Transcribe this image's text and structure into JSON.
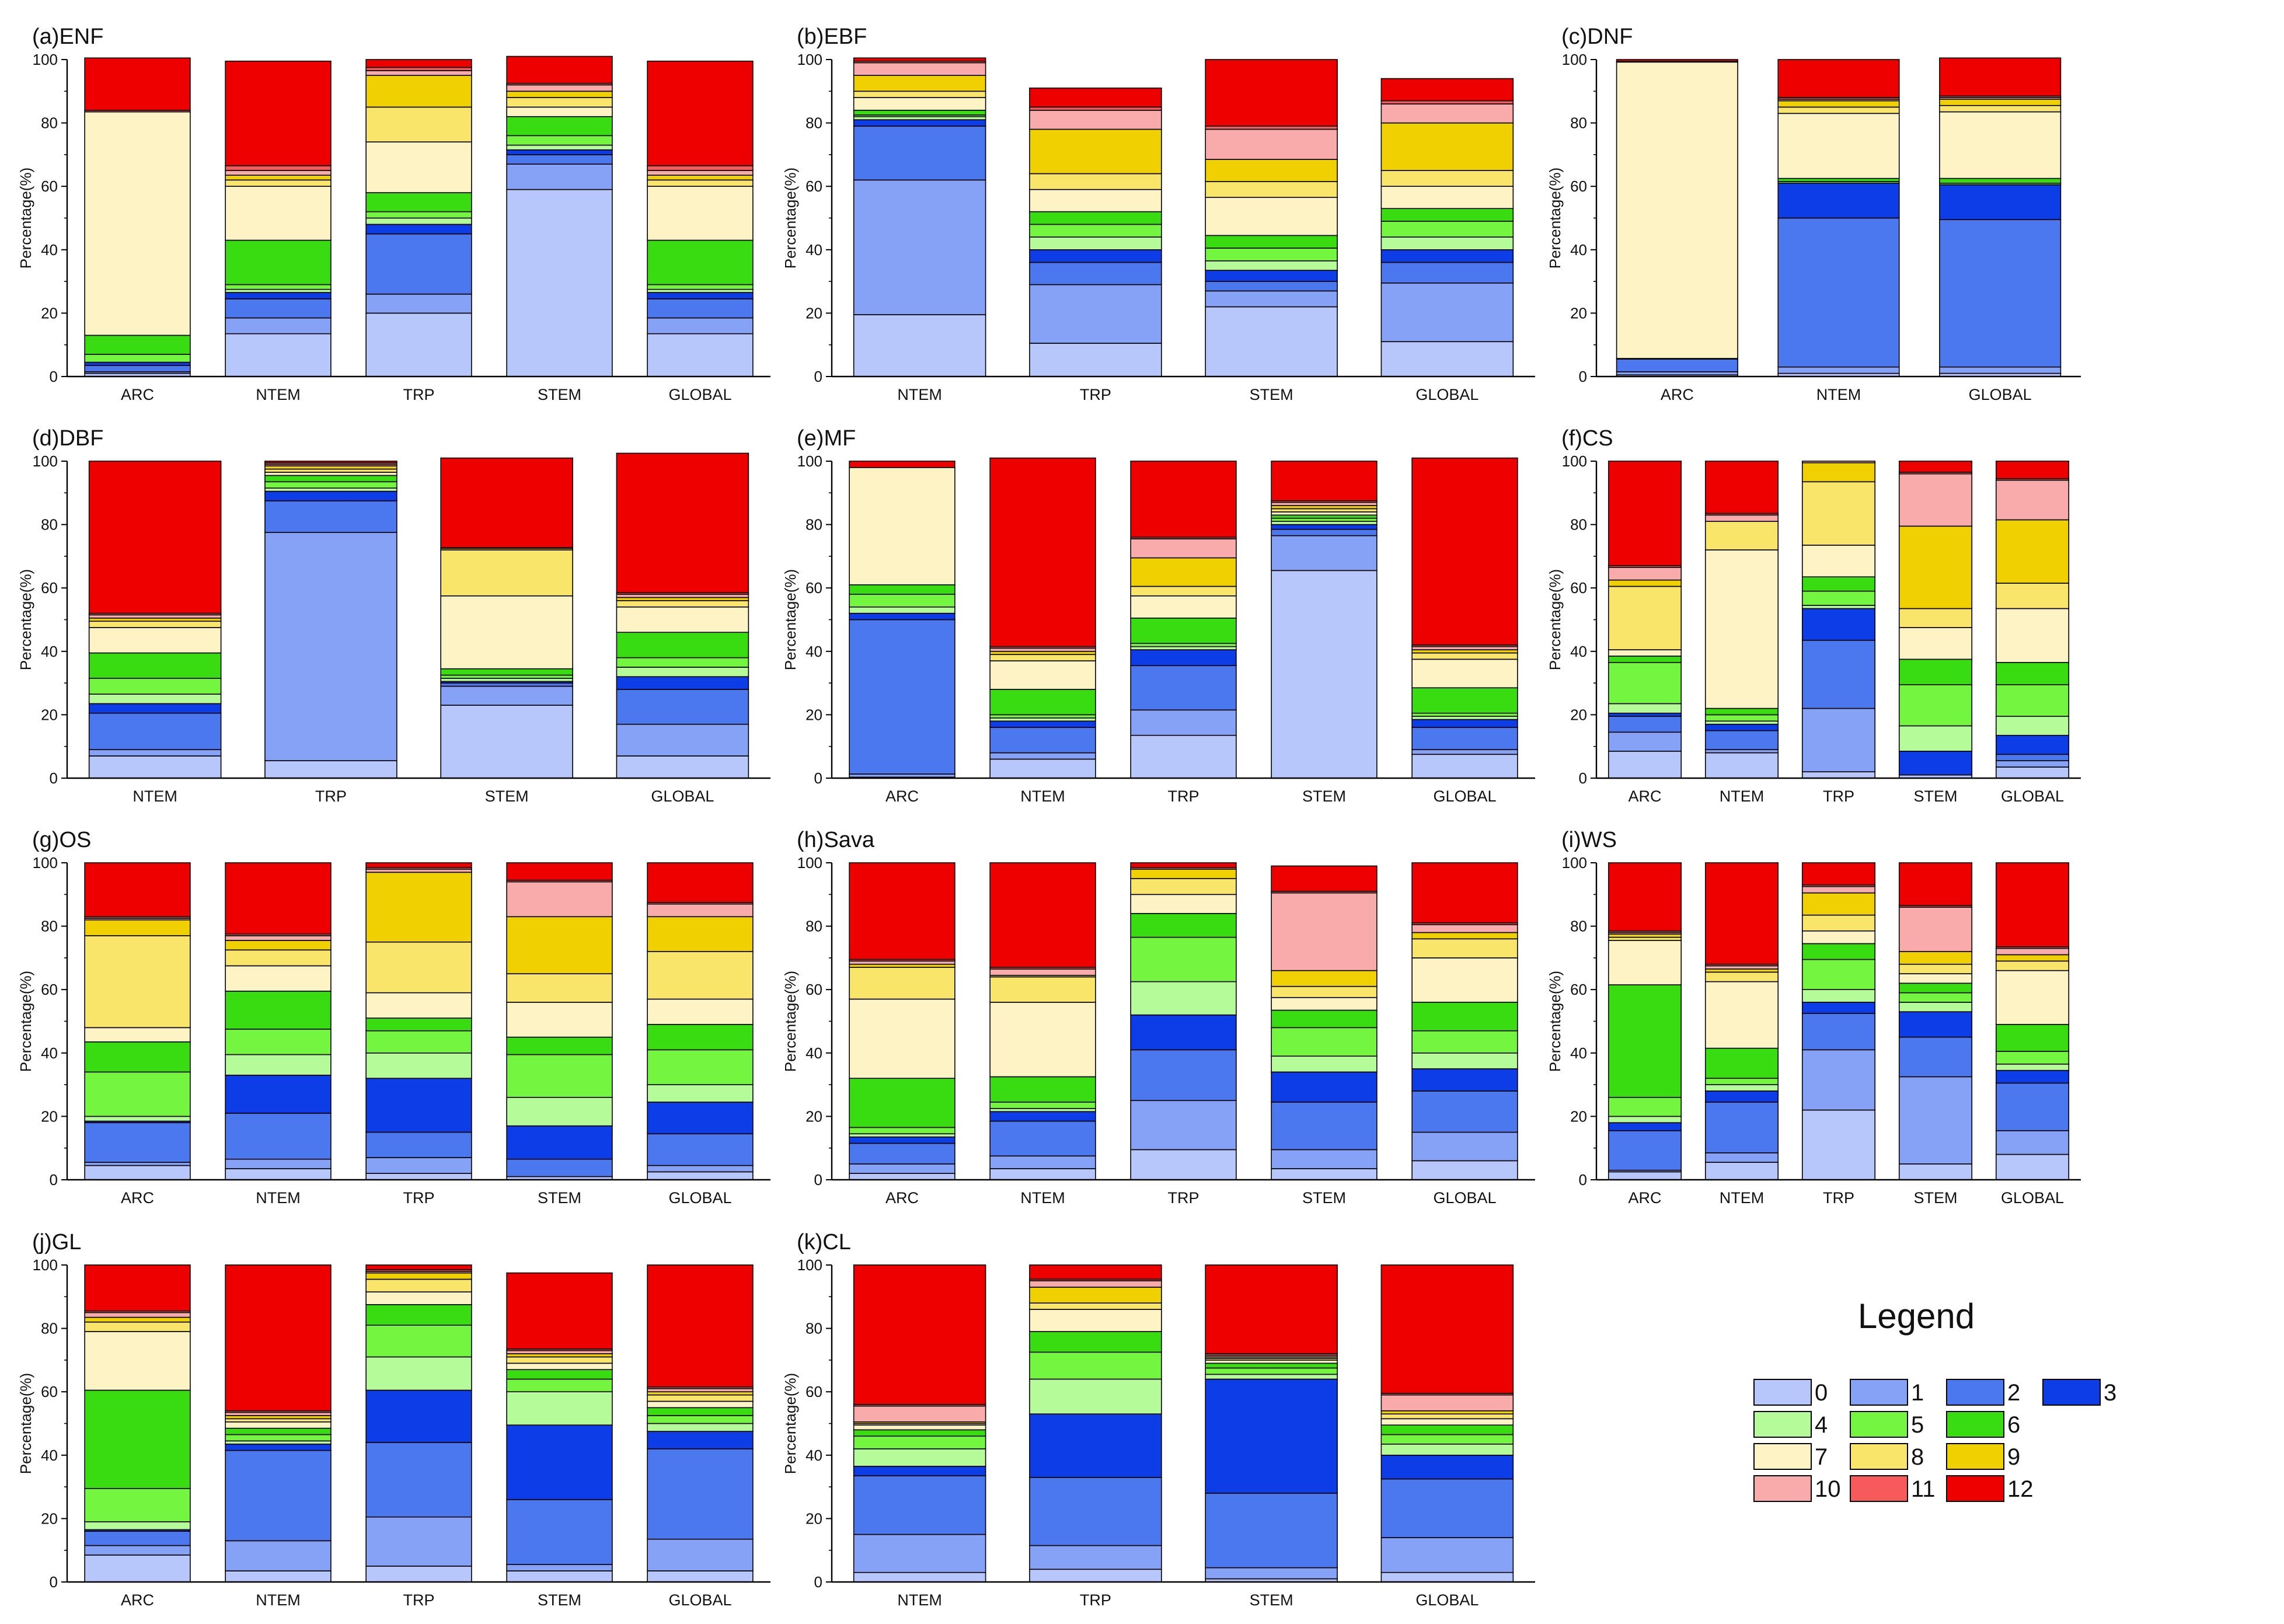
{
  "figure": {
    "ylabel": "Percentage(%)",
    "legend_title": "Legend",
    "yticks": [
      "0",
      "20",
      "40",
      "60",
      "80",
      "100"
    ]
  },
  "legend": {
    "classes": [
      {
        "label": "0",
        "color": "#b7c6fb"
      },
      {
        "label": "1",
        "color": "#86a2f7"
      },
      {
        "label": "2",
        "color": "#4b78ef"
      },
      {
        "label": "3",
        "color": "#0c3de6"
      },
      {
        "label": "4",
        "color": "#b6fb9a"
      },
      {
        "label": "5",
        "color": "#74f53f"
      },
      {
        "label": "6",
        "color": "#38dc10"
      },
      {
        "label": "7",
        "color": "#fdf3c4"
      },
      {
        "label": "8",
        "color": "#f9e56a"
      },
      {
        "label": "9",
        "color": "#f0d000"
      },
      {
        "label": "10",
        "color": "#f9abab"
      },
      {
        "label": "11",
        "color": "#f65a5a"
      },
      {
        "label": "12",
        "color": "#ee0000"
      }
    ]
  },
  "chart_data": [
    {
      "type": "bar",
      "title": "(a)ENF",
      "ylabel": "Percentage(%)",
      "ylim": [
        0,
        100
      ],
      "categories": [
        "ARC",
        "NTEM",
        "TRP",
        "STEM",
        "GLOBAL"
      ],
      "stacks": [
        [
          1,
          0.5,
          2,
          1,
          0,
          2.5,
          6,
          70.5,
          0,
          0,
          0,
          0.5,
          16.5
        ],
        [
          13.5,
          5,
          6,
          2,
          1,
          1.5,
          14,
          17,
          2,
          1.5,
          1.5,
          1.5,
          33
        ],
        [
          20,
          6,
          19,
          3,
          2,
          2,
          6,
          16,
          11,
          10,
          1.5,
          1,
          2.5
        ],
        [
          59,
          8,
          3,
          1.5,
          1.5,
          3,
          6,
          3,
          3,
          2,
          2,
          0.5,
          8.5
        ],
        [
          13.5,
          5,
          6,
          2,
          1,
          1.5,
          14,
          17,
          2,
          1.5,
          1.5,
          1.5,
          33
        ]
      ]
    },
    {
      "type": "bar",
      "title": "(b)EBF",
      "ylabel": "Percentage(%)",
      "ylim": [
        0,
        100
      ],
      "categories": [
        "NTEM",
        "TRP",
        "STEM",
        "GLOBAL"
      ],
      "stacks": [
        [
          19.5,
          42.5,
          17,
          2,
          1,
          0.5,
          1.5,
          4,
          2,
          5,
          4,
          0.5,
          1
        ],
        [
          10.5,
          18.5,
          7,
          4,
          4,
          4,
          4,
          7,
          5,
          14,
          6,
          1,
          6
        ],
        [
          22,
          5,
          3,
          3.5,
          3,
          4,
          4,
          12,
          5,
          7,
          9.5,
          1,
          21
        ],
        [
          11,
          18.5,
          6.5,
          4,
          4,
          5,
          4,
          7,
          5,
          15,
          6,
          1,
          7
        ]
      ]
    },
    {
      "type": "bar",
      "title": "(c)DNF",
      "ylabel": "Percentage(%)",
      "ylim": [
        0,
        100
      ],
      "categories": [
        "ARC",
        "NTEM",
        "GLOBAL"
      ],
      "stacks": [
        [
          0.5,
          1,
          4,
          0,
          0,
          0,
          0.2,
          93.5,
          0,
          0,
          0.2,
          0,
          0.6
        ],
        [
          1,
          2,
          47,
          11,
          0,
          0.5,
          1,
          20.5,
          2,
          2,
          0.5,
          0.5,
          12
        ],
        [
          1,
          2,
          46.5,
          11,
          0,
          0.5,
          1.5,
          21,
          2,
          2,
          0.5,
          0.5,
          12
        ]
      ]
    },
    {
      "type": "bar",
      "title": "(d)DBF",
      "ylabel": "Percentage(%)",
      "ylim": [
        0,
        100
      ],
      "categories": [
        "NTEM",
        "TRP",
        "STEM",
        "GLOBAL"
      ],
      "stacks": [
        [
          7,
          2,
          11.5,
          3,
          3,
          5,
          8,
          8,
          2,
          1,
          1,
          0.5,
          48
        ],
        [
          5.5,
          72,
          10,
          3,
          1,
          2,
          2,
          1,
          1,
          1,
          0.5,
          0.5,
          0.5
        ],
        [
          23,
          6,
          1,
          0.5,
          1,
          1,
          2,
          23,
          14.5,
          0.5,
          0.2,
          0,
          28.3
        ],
        [
          7,
          10,
          11,
          4,
          3,
          3,
          8,
          8,
          2,
          1,
          1,
          0.5,
          44
        ]
      ]
    },
    {
      "type": "bar",
      "title": "(e)MF",
      "ylabel": "Percentage(%)",
      "ylim": [
        0,
        100
      ],
      "categories": [
        "ARC",
        "NTEM",
        "TRP",
        "STEM",
        "GLOBAL"
      ],
      "stacks": [
        [
          0.3,
          1,
          48.7,
          2,
          2,
          4,
          3,
          37,
          0,
          0,
          0,
          0,
          2
        ],
        [
          6,
          2,
          8,
          2,
          1,
          1,
          8,
          9,
          2,
          1,
          1,
          0.5,
          59.5
        ],
        [
          13.5,
          8,
          14,
          5,
          1,
          1,
          8,
          7,
          3,
          9,
          6,
          0.5,
          24
        ],
        [
          65.5,
          11,
          2,
          1.5,
          1,
          1,
          1,
          1,
          1,
          1,
          1,
          0.5,
          12.5
        ],
        [
          7.5,
          1.5,
          7,
          2.5,
          1,
          1,
          8,
          9,
          2,
          1,
          1,
          0.5,
          59
        ]
      ]
    },
    {
      "type": "bar",
      "title": "(f)CS",
      "ylabel": "Percentage(%)",
      "ylim": [
        0,
        100
      ],
      "categories": [
        "ARC",
        "NTEM",
        "TRP",
        "STEM",
        "GLOBAL"
      ],
      "stacks": [
        [
          8.5,
          6,
          5,
          1,
          3,
          13,
          2,
          2,
          20,
          2,
          4,
          0.5,
          33
        ],
        [
          8,
          1,
          6,
          2,
          1,
          2,
          2,
          50,
          9,
          0,
          2,
          0.5,
          16.5
        ],
        [
          2,
          20,
          21.5,
          10,
          1,
          4.5,
          4.5,
          10,
          20,
          6,
          0.5,
          0,
          0
        ],
        [
          1,
          0,
          0,
          7.5,
          8,
          13,
          8,
          10,
          6,
          26,
          16.5,
          0.5,
          3.5
        ],
        [
          3.5,
          2,
          2,
          6,
          6,
          10,
          7,
          17,
          8,
          20,
          12.5,
          0.5,
          5.5
        ]
      ]
    },
    {
      "type": "bar",
      "title": "(g)OS",
      "ylabel": "Percentage(%)",
      "ylim": [
        0,
        100
      ],
      "categories": [
        "ARC",
        "NTEM",
        "TRP",
        "STEM",
        "GLOBAL"
      ],
      "stacks": [
        [
          4.5,
          1,
          12.5,
          0.5,
          1.5,
          14,
          9.5,
          4.5,
          29,
          5,
          0.5,
          0.5,
          17
        ],
        [
          3.5,
          3,
          14.5,
          12,
          6.5,
          8,
          12,
          8,
          5,
          3,
          1.5,
          0.5,
          22.5
        ],
        [
          2,
          5,
          8,
          17,
          8,
          7,
          4,
          8,
          16,
          22,
          1,
          0.5,
          1.5
        ],
        [
          1,
          0,
          5.5,
          10.5,
          9,
          13.5,
          5.5,
          11,
          9,
          18,
          11,
          0.5,
          5.5
        ],
        [
          2.5,
          2,
          10,
          10,
          5.5,
          11,
          8,
          8,
          15,
          11,
          4,
          0.5,
          12.5
        ]
      ]
    },
    {
      "type": "bar",
      "title": "(h)Sava",
      "ylabel": "Percentage(%)",
      "ylim": [
        0,
        100
      ],
      "categories": [
        "ARC",
        "NTEM",
        "TRP",
        "STEM",
        "GLOBAL"
      ],
      "stacks": [
        [
          2,
          3,
          6.5,
          2,
          1,
          2,
          15.5,
          25,
          10,
          1,
          1,
          0.5,
          30.5
        ],
        [
          3.5,
          4,
          11,
          3,
          1,
          2,
          8,
          23.5,
          8,
          0.5,
          2,
          0.5,
          33
        ],
        [
          9.5,
          15.5,
          16,
          11,
          10.5,
          14,
          7.5,
          6,
          5,
          3,
          0,
          0.5,
          1.5
        ],
        [
          3.5,
          6,
          15,
          9.5,
          5,
          9,
          5.5,
          4,
          3.5,
          5,
          24.5,
          0.5,
          8
        ],
        [
          6,
          9,
          13,
          7,
          5,
          7,
          9,
          14,
          6,
          2,
          2.5,
          0.5,
          19
        ]
      ]
    },
    {
      "type": "bar",
      "title": "(i)WS",
      "ylabel": "Percentage(%)",
      "ylim": [
        0,
        100
      ],
      "categories": [
        "ARC",
        "NTEM",
        "TRP",
        "STEM",
        "GLOBAL"
      ],
      "stacks": [
        [
          2.5,
          0.5,
          12.5,
          2.5,
          2,
          6,
          35.5,
          14,
          1,
          1,
          0.5,
          0.5,
          21.5
        ],
        [
          5.5,
          3,
          16,
          3.5,
          2,
          2,
          9.5,
          21,
          3,
          1,
          1,
          0.5,
          32
        ],
        [
          22,
          19,
          11.5,
          3.5,
          4,
          9.5,
          5,
          4,
          5,
          7,
          2,
          0.5,
          7
        ],
        [
          5,
          27.5,
          12.5,
          8,
          3,
          3,
          3,
          3,
          3,
          4,
          14,
          0.5,
          13.5
        ],
        [
          8,
          7.5,
          15,
          4,
          2,
          4,
          8.5,
          17,
          3,
          2,
          2,
          0.5,
          26.5
        ]
      ]
    },
    {
      "type": "bar",
      "title": "(j)GL",
      "ylabel": "Percentage(%)",
      "ylim": [
        0,
        100
      ],
      "categories": [
        "ARC",
        "NTEM",
        "TRP",
        "STEM",
        "GLOBAL"
      ],
      "stacks": [
        [
          8.5,
          3,
          4.5,
          0.5,
          2.5,
          10.5,
          31,
          18.5,
          3,
          1.5,
          1.5,
          0.5,
          14.5
        ],
        [
          3.5,
          9.5,
          28.5,
          2,
          1,
          2,
          2,
          2,
          1,
          1,
          1,
          0.5,
          46
        ],
        [
          5,
          15.5,
          23.5,
          16.5,
          10.5,
          10,
          6.5,
          4,
          4,
          2,
          0.5,
          0.5,
          1.5
        ],
        [
          3.5,
          2,
          20.5,
          23.5,
          10.5,
          4,
          3,
          2,
          2,
          1,
          1,
          0.5,
          24
        ],
        [
          3.5,
          10,
          28.5,
          5.5,
          2.5,
          2.5,
          2.5,
          2,
          2,
          1,
          1,
          0.5,
          38.5
        ]
      ]
    },
    {
      "type": "bar",
      "title": "(k)CL",
      "ylabel": "Percentage(%)",
      "ylim": [
        0,
        100
      ],
      "categories": [
        "NTEM",
        "TRP",
        "STEM",
        "GLOBAL"
      ],
      "stacks": [
        [
          3,
          12,
          18.5,
          3,
          5.5,
          4,
          2,
          1.5,
          0.5,
          0.5,
          5,
          0.5,
          44
        ],
        [
          4,
          7.5,
          21.5,
          20,
          11,
          8.5,
          6.5,
          7,
          2,
          5,
          2,
          0.5,
          4.5
        ],
        [
          1,
          3.5,
          23.5,
          36,
          1.5,
          2,
          1.5,
          1,
          0.5,
          0.5,
          0.5,
          0.5,
          28
        ],
        [
          3,
          11,
          18.5,
          7.5,
          3.5,
          3,
          3,
          2,
          1.5,
          1,
          5,
          0.5,
          40.5
        ]
      ]
    }
  ]
}
